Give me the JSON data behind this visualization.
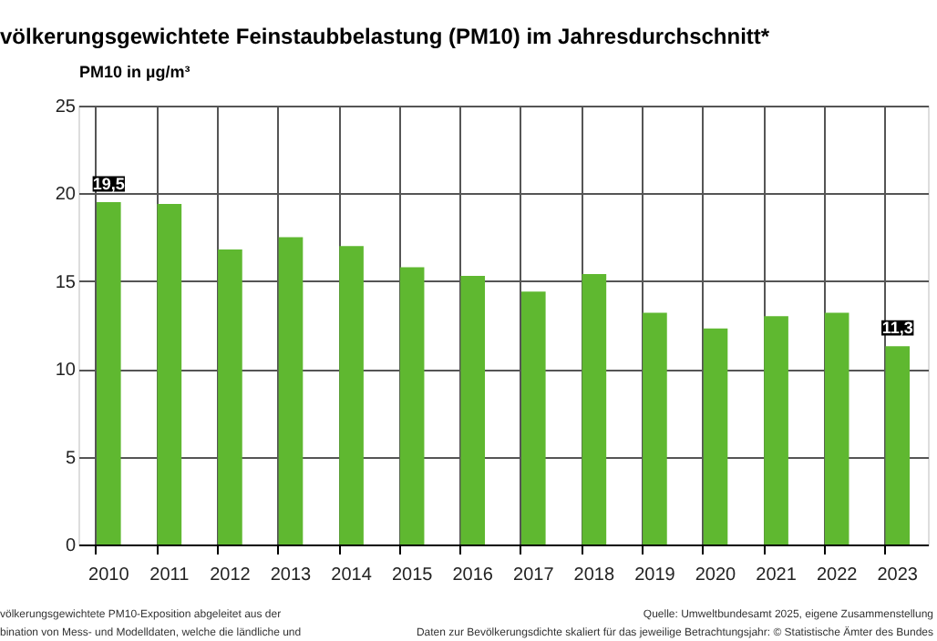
{
  "chart_data": {
    "type": "bar",
    "title": "völkerungsgewichtete Feinstaubbelastung (PM10) im Jahresdurchschnitt*",
    "ylabel": "PM10 in µg/m³",
    "categories": [
      "2010",
      "2011",
      "2012",
      "2013",
      "2014",
      "2015",
      "2016",
      "2017",
      "2018",
      "2019",
      "2020",
      "2021",
      "2022",
      "2023"
    ],
    "values": [
      19.5,
      19.4,
      16.8,
      17.5,
      17.0,
      15.8,
      15.3,
      14.4,
      15.4,
      13.2,
      12.3,
      13.0,
      13.2,
      11.3
    ],
    "value_labels": [
      "19,5",
      null,
      null,
      null,
      null,
      null,
      null,
      null,
      null,
      null,
      null,
      null,
      null,
      "11,3"
    ],
    "color": "#5fb830",
    "ylim": [
      0,
      25
    ],
    "yticks": [
      0,
      5,
      10,
      15,
      20,
      25
    ],
    "grid": true,
    "annotations": [
      "völkerungsgewichtete PM10-Exposition abgeleitet aus der",
      "bination von Mess- und Modelldaten, welche die ländliche und",
      "Quelle: Umweltbundesamt 2025, eigene Zusammenstellung",
      "Daten zur Bevölkerungsdichte skaliert für das jeweilige Betrachtungsjahr: © Statistische Ämter des Bundes"
    ]
  }
}
